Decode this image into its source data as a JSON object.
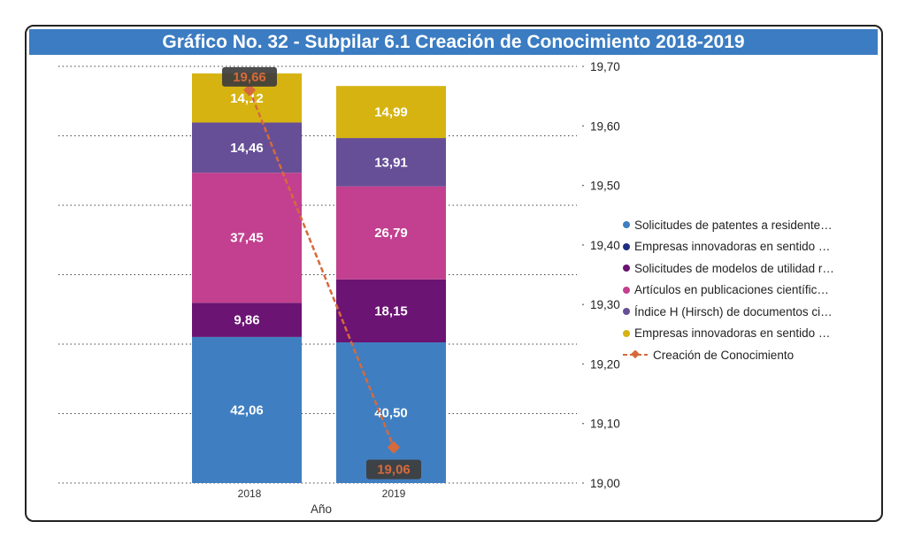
{
  "chart_data": {
    "type": "bar",
    "title": "Gráfico No. 32 - Subpilar 6.1 Creación de Conocimiento 2018-2019",
    "xlabel": "Año",
    "categories": [
      "2018",
      "2019"
    ],
    "stacked": true,
    "left_axis": {
      "ylim": [
        0,
        120
      ],
      "grid_step": 20,
      "tick_labels_visible": false
    },
    "right_axis": {
      "ylim": [
        19.0,
        19.7
      ],
      "ticks": [
        "19,00",
        "19,10",
        "19,20",
        "19,30",
        "19,40",
        "19,50",
        "19,60",
        "19,70"
      ]
    },
    "series": [
      {
        "name": "Solicitudes de patentes a residente…",
        "color": "#3f7fc1",
        "values": [
          42.06,
          40.5
        ],
        "labels": [
          "42,06",
          "40,50"
        ]
      },
      {
        "name": "Empresas innovadoras en sentido …",
        "color": "#1f2d80",
        "values": [
          0,
          0
        ],
        "labels": [
          "",
          ""
        ]
      },
      {
        "name": "Solicitudes de modelos de utilidad r…",
        "color": "#6b1473",
        "values": [
          9.86,
          18.15
        ],
        "labels": [
          "9,86",
          "18,15"
        ]
      },
      {
        "name": "Artículos en publicaciones científic…",
        "color": "#c2408f",
        "values": [
          37.45,
          26.79
        ],
        "labels": [
          "37,45",
          "26,79"
        ]
      },
      {
        "name": "Índice H (Hirsch) de documentos ci…",
        "color": "#664f96",
        "values": [
          14.46,
          13.91
        ],
        "labels": [
          "14,46",
          "13,91"
        ]
      },
      {
        "name": "Empresas innovadoras en sentido …",
        "color": "#d6b311",
        "values": [
          14.12,
          14.99
        ],
        "labels": [
          "14,12",
          "14,99"
        ]
      }
    ],
    "line": {
      "name": "Creación de Conocimiento",
      "color": "#d66a3c",
      "axis": "right",
      "values": [
        19.66,
        19.06
      ],
      "labels": [
        "19,66",
        "19,06"
      ]
    },
    "legend_position": "right"
  }
}
